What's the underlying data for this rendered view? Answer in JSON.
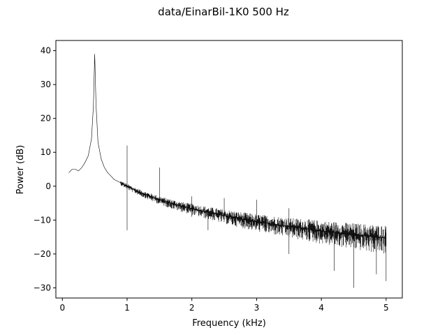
{
  "chart_data": {
    "type": "line",
    "title": "data/EinarBil-1K0   500 Hz",
    "xlabel": "Frequency (kHz)",
    "ylabel": "Power (dB)",
    "xlim": [
      -0.1,
      5.25
    ],
    "ylim": [
      -33,
      43
    ],
    "xticks": [
      0,
      1,
      2,
      3,
      4,
      5
    ],
    "xtick_labels": [
      "0",
      "1",
      "2",
      "3",
      "4",
      "5"
    ],
    "yticks": [
      -30,
      -20,
      -10,
      0,
      10,
      20,
      30,
      40
    ],
    "ytick_labels": [
      "−30",
      "−20",
      "−10",
      "0",
      "10",
      "20",
      "30",
      "40"
    ],
    "grid": false,
    "line_color": "#000000",
    "series": [
      {
        "x": [
          0.1,
          0.15,
          0.2,
          0.25,
          0.3,
          0.35,
          0.4,
          0.45,
          0.48,
          0.5,
          0.52,
          0.55,
          0.6,
          0.65,
          0.7,
          0.75,
          0.8,
          0.85,
          0.9,
          0.95,
          1.0,
          1.1,
          1.2,
          1.3,
          1.4,
          1.5,
          1.6,
          1.8,
          2.0,
          2.2,
          2.5,
          2.8,
          3.0,
          3.3,
          3.5,
          3.8,
          4.0,
          4.3,
          4.5,
          4.8,
          5.0
        ],
        "y": [
          4,
          5,
          5,
          4.5,
          5.5,
          7,
          9,
          14,
          24,
          39,
          24,
          13,
          8,
          5.5,
          4,
          3,
          2,
          1.5,
          1,
          0.5,
          0,
          -1,
          -1.8,
          -2.6,
          -3.3,
          -4,
          -4.6,
          -5.7,
          -6.6,
          -7.5,
          -8.7,
          -9.8,
          -10.5,
          -11.3,
          -11.9,
          -12.6,
          -13.2,
          -13.8,
          -14.3,
          -14.9,
          -15.3
        ]
      }
    ],
    "spikes": [
      {
        "x": 1.0,
        "top": 12,
        "bottom": -13
      },
      {
        "x": 1.5,
        "top": 5.5,
        "bottom": -4
      },
      {
        "x": 2.0,
        "top": -3,
        "bottom": -9
      },
      {
        "x": 2.25,
        "top": -7,
        "bottom": -13
      },
      {
        "x": 2.5,
        "top": -3.5,
        "bottom": -10
      },
      {
        "x": 3.0,
        "top": -4,
        "bottom": -12
      },
      {
        "x": 3.5,
        "top": -6.5,
        "bottom": -20
      },
      {
        "x": 4.2,
        "top": -12,
        "bottom": -25
      },
      {
        "x": 4.5,
        "top": -12,
        "bottom": -30
      },
      {
        "x": 4.85,
        "top": -13,
        "bottom": -26
      },
      {
        "x": 5.0,
        "top": -12,
        "bottom": -28
      }
    ]
  }
}
